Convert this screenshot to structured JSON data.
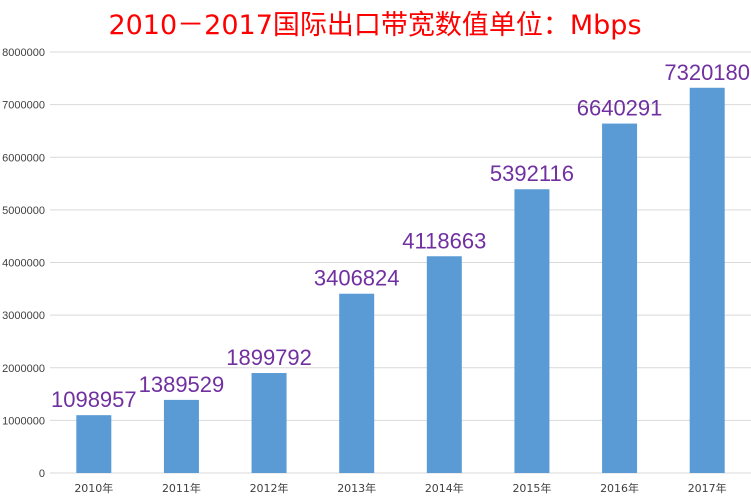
{
  "chart_data": {
    "type": "bar",
    "title": "2010－2017国际出口带宽数值单位：Mbps",
    "xlabel": "",
    "ylabel": "",
    "categories": [
      "2010年",
      "2011年",
      "2012年",
      "2013年",
      "2014年",
      "2015年",
      "2016年",
      "2017年"
    ],
    "values": [
      1098957,
      1389529,
      1899792,
      3406824,
      4118663,
      5392116,
      6640291,
      7320180
    ],
    "data_labels": [
      "1098957",
      "1389529",
      "1899792",
      "3406824",
      "4118663",
      "5392116",
      "6640291",
      "7320180"
    ],
    "ylim": [
      0,
      8000000
    ],
    "yticks": [
      0,
      1000000,
      2000000,
      3000000,
      4000000,
      5000000,
      6000000,
      7000000,
      8000000
    ],
    "ytick_labels": [
      "0",
      "1000000",
      "2000000",
      "3000000",
      "4000000",
      "5000000",
      "6000000",
      "7000000",
      "8000000"
    ],
    "grid": true,
    "legend": "none",
    "colors": {
      "bar": "#5B9BD5",
      "title": "#FF0000",
      "data_label": "#7030A0",
      "grid": "#D9D9D9",
      "tick_text": "#404040"
    }
  }
}
